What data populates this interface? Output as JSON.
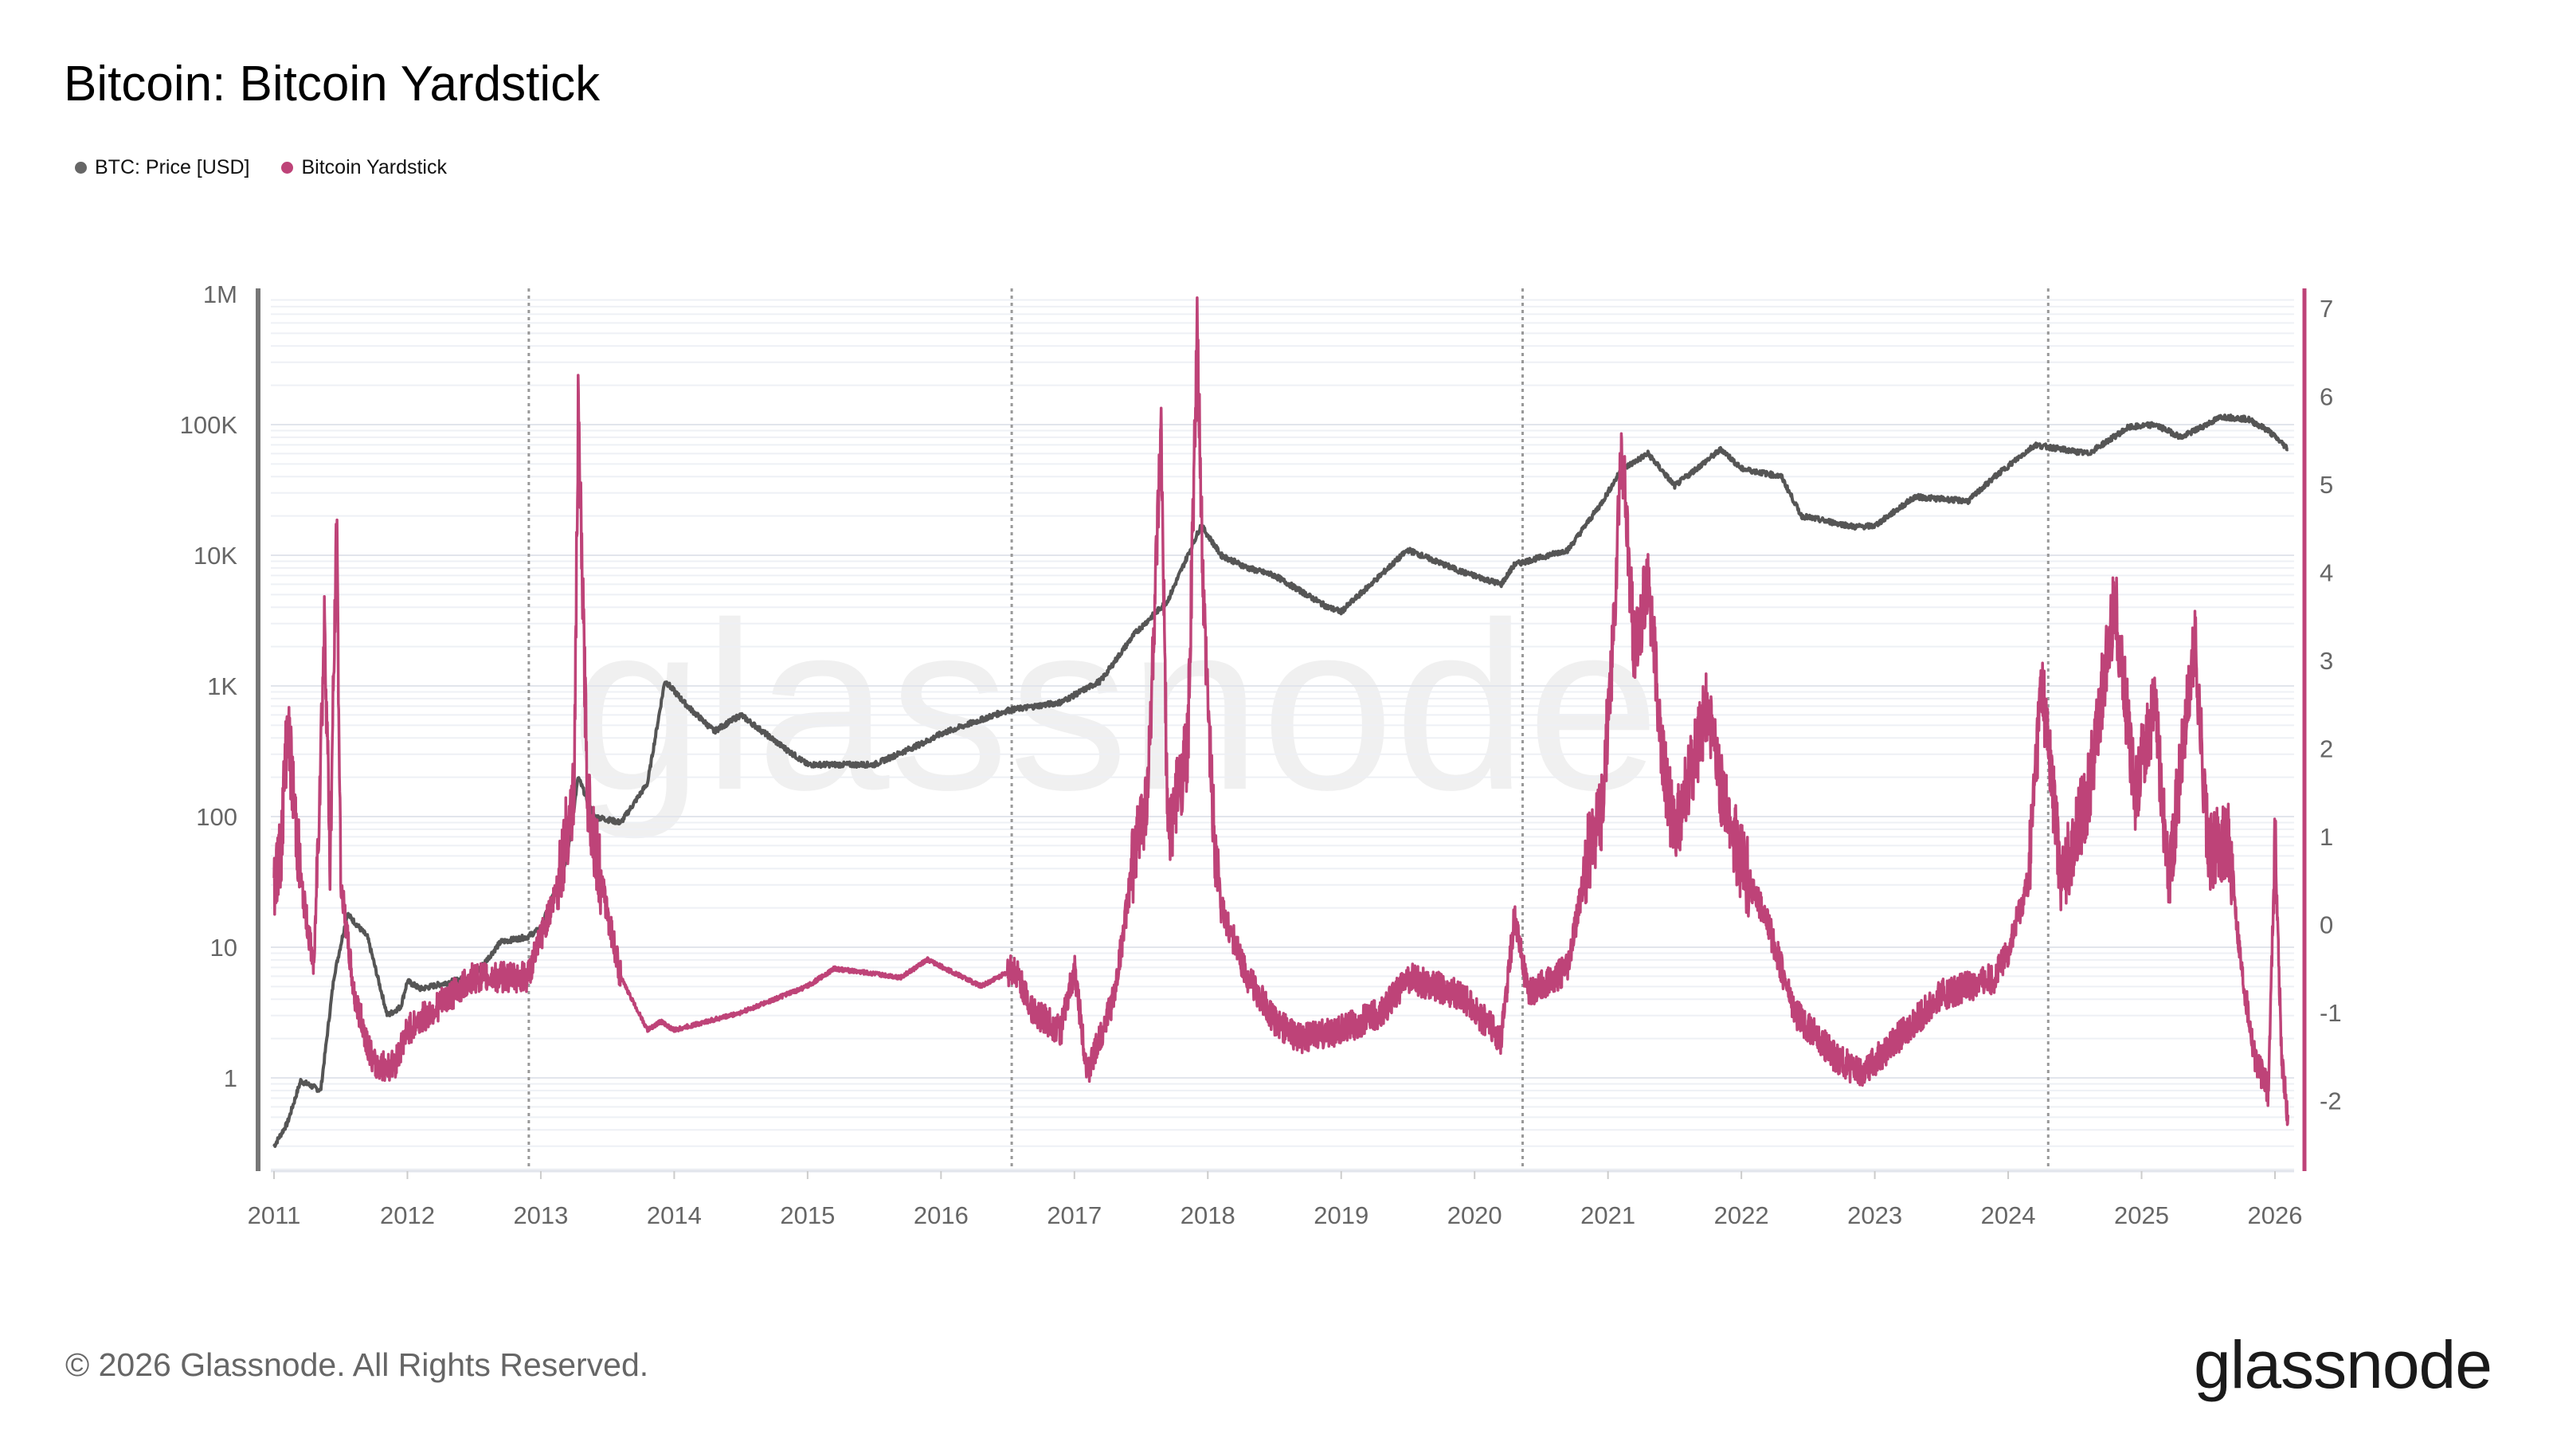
{
  "title": "Bitcoin: Bitcoin Yardstick",
  "legend": [
    {
      "label": "BTC: Price [USD]",
      "color": "#666666"
    },
    {
      "label": "Bitcoin Yardstick",
      "color": "#be4378"
    }
  ],
  "footer": "© 2026 Glassnode. All Rights Reserved.",
  "logo": "glassnode",
  "watermark": "glassnode",
  "chart_data": {
    "type": "line",
    "title": "Bitcoin: Bitcoin Yardstick",
    "x_ticks": [
      "2011",
      "2012",
      "2013",
      "2014",
      "2015",
      "2016",
      "2017",
      "2018",
      "2019",
      "2020",
      "2021",
      "2022",
      "2023",
      "2024",
      "2025",
      "2026"
    ],
    "xlim": [
      2011,
      2026.15
    ],
    "y_left": {
      "scale": "log",
      "range": [
        0.2,
        1000000
      ],
      "ticks": [
        {
          "v": 1,
          "label": "1"
        },
        {
          "v": 10,
          "label": "10"
        },
        {
          "v": 100,
          "label": "100"
        },
        {
          "v": 1000,
          "label": "1K"
        },
        {
          "v": 10000,
          "label": "10K"
        },
        {
          "v": 100000,
          "label": "100K"
        },
        {
          "v": 1000000,
          "label": "1M"
        }
      ]
    },
    "y_right": {
      "scale": "linear",
      "range": [
        -2.85,
        7.2
      ],
      "ticks": [
        -2,
        -1,
        0,
        1,
        2,
        3,
        4,
        5,
        6,
        7
      ]
    },
    "halving_lines": [
      2012.91,
      2016.53,
      2020.36,
      2024.3
    ],
    "grid": true,
    "legend_position": "top-left",
    "series": [
      {
        "name": "BTC: Price [USD]",
        "axis": "left",
        "color": "#555555",
        "points": [
          [
            2011.0,
            0.3
          ],
          [
            2011.1,
            0.45
          ],
          [
            2011.2,
            0.95
          ],
          [
            2011.35,
            0.8
          ],
          [
            2011.45,
            6
          ],
          [
            2011.55,
            18
          ],
          [
            2011.7,
            12
          ],
          [
            2011.85,
            3
          ],
          [
            2011.95,
            3.5
          ],
          [
            2012.0,
            5.5
          ],
          [
            2012.1,
            4.8
          ],
          [
            2012.5,
            6
          ],
          [
            2012.7,
            11
          ],
          [
            2012.9,
            12
          ],
          [
            2013.0,
            14
          ],
          [
            2013.2,
            50
          ],
          [
            2013.28,
            200
          ],
          [
            2013.4,
            100
          ],
          [
            2013.6,
            90
          ],
          [
            2013.8,
            180
          ],
          [
            2013.93,
            1100
          ],
          [
            2014.1,
            700
          ],
          [
            2014.3,
            450
          ],
          [
            2014.5,
            600
          ],
          [
            2014.8,
            350
          ],
          [
            2015.0,
            250
          ],
          [
            2015.5,
            250
          ],
          [
            2015.9,
            380
          ],
          [
            2016.0,
            430
          ],
          [
            2016.5,
            650
          ],
          [
            2016.9,
            750
          ],
          [
            2017.2,
            1100
          ],
          [
            2017.45,
            2500
          ],
          [
            2017.7,
            4500
          ],
          [
            2017.95,
            17000
          ],
          [
            2018.1,
            10000
          ],
          [
            2018.3,
            8000
          ],
          [
            2018.5,
            7000
          ],
          [
            2018.9,
            4000
          ],
          [
            2019.0,
            3700
          ],
          [
            2019.5,
            11000
          ],
          [
            2019.9,
            7500
          ],
          [
            2020.2,
            6000
          ],
          [
            2020.3,
            8500
          ],
          [
            2020.7,
            11000
          ],
          [
            2020.95,
            25000
          ],
          [
            2021.1,
            45000
          ],
          [
            2021.3,
            60000
          ],
          [
            2021.5,
            34000
          ],
          [
            2021.85,
            65000
          ],
          [
            2022.0,
            46000
          ],
          [
            2022.3,
            40000
          ],
          [
            2022.45,
            20000
          ],
          [
            2022.85,
            16500
          ],
          [
            2023.0,
            16800
          ],
          [
            2023.3,
            28000
          ],
          [
            2023.7,
            26000
          ],
          [
            2023.9,
            40000
          ],
          [
            2024.2,
            70000
          ],
          [
            2024.6,
            60000
          ],
          [
            2024.9,
            95000
          ],
          [
            2025.1,
            100000
          ],
          [
            2025.3,
            80000
          ],
          [
            2025.6,
            115000
          ],
          [
            2025.8,
            110000
          ],
          [
            2025.95,
            90000
          ],
          [
            2026.1,
            65000
          ]
        ]
      },
      {
        "name": "Bitcoin Yardstick",
        "axis": "right",
        "color": "#be4378",
        "points": [
          [
            2011.0,
            0.5
          ],
          [
            2011.05,
            0.8
          ],
          [
            2011.1,
            2.3
          ],
          [
            2011.2,
            0.5
          ],
          [
            2011.3,
            -0.5
          ],
          [
            2011.38,
            3.5
          ],
          [
            2011.42,
            0.7
          ],
          [
            2011.47,
            4.5
          ],
          [
            2011.5,
            0.5
          ],
          [
            2011.6,
            -0.8
          ],
          [
            2011.75,
            -1.6
          ],
          [
            2011.9,
            -1.6
          ],
          [
            2012.0,
            -1.2
          ],
          [
            2012.5,
            -0.6
          ],
          [
            2012.9,
            -0.6
          ],
          [
            2013.1,
            0.3
          ],
          [
            2013.25,
            1.5
          ],
          [
            2013.28,
            5.8
          ],
          [
            2013.35,
            1.5
          ],
          [
            2013.45,
            0.5
          ],
          [
            2013.6,
            -0.6
          ],
          [
            2013.8,
            -1.2
          ],
          [
            2013.9,
            -1.1
          ],
          [
            2014.0,
            -1.2
          ],
          [
            2014.5,
            -1.0
          ],
          [
            2015.0,
            -0.7
          ],
          [
            2015.2,
            -0.5
          ],
          [
            2015.7,
            -0.6
          ],
          [
            2015.9,
            -0.4
          ],
          [
            2016.3,
            -0.7
          ],
          [
            2016.55,
            -0.5
          ],
          [
            2016.7,
            -1.0
          ],
          [
            2016.9,
            -1.2
          ],
          [
            2017.0,
            -0.5
          ],
          [
            2017.1,
            -1.7
          ],
          [
            2017.3,
            -0.8
          ],
          [
            2017.45,
            0.8
          ],
          [
            2017.55,
            1.5
          ],
          [
            2017.65,
            5.5
          ],
          [
            2017.7,
            1.0
          ],
          [
            2017.85,
            2.0
          ],
          [
            2017.92,
            6.7
          ],
          [
            2017.97,
            3.5
          ],
          [
            2018.0,
            2.5
          ],
          [
            2018.05,
            1.0
          ],
          [
            2018.1,
            0.2
          ],
          [
            2018.3,
            -0.6
          ],
          [
            2018.5,
            -1.1
          ],
          [
            2018.7,
            -1.3
          ],
          [
            2019.0,
            -1.2
          ],
          [
            2019.3,
            -1.0
          ],
          [
            2019.5,
            -0.6
          ],
          [
            2019.9,
            -0.8
          ],
          [
            2020.2,
            -1.3
          ],
          [
            2020.3,
            0.1
          ],
          [
            2020.4,
            -0.8
          ],
          [
            2020.7,
            -0.5
          ],
          [
            2020.85,
            0.8
          ],
          [
            2020.95,
            1.2
          ],
          [
            2021.05,
            3.5
          ],
          [
            2021.1,
            5.5
          ],
          [
            2021.2,
            3.0
          ],
          [
            2021.3,
            4.0
          ],
          [
            2021.4,
            2.0
          ],
          [
            2021.5,
            1.0
          ],
          [
            2021.75,
            2.5
          ],
          [
            2021.85,
            1.5
          ],
          [
            2022.0,
            0.7
          ],
          [
            2022.2,
            0.0
          ],
          [
            2022.4,
            -1.0
          ],
          [
            2022.7,
            -1.5
          ],
          [
            2022.9,
            -1.7
          ],
          [
            2023.1,
            -1.4
          ],
          [
            2023.5,
            -0.8
          ],
          [
            2023.9,
            -0.6
          ],
          [
            2024.0,
            -0.3
          ],
          [
            2024.15,
            0.5
          ],
          [
            2024.25,
            2.8
          ],
          [
            2024.4,
            0.5
          ],
          [
            2024.6,
            1.5
          ],
          [
            2024.8,
            3.7
          ],
          [
            2024.95,
            1.5
          ],
          [
            2025.1,
            2.5
          ],
          [
            2025.2,
            0.5
          ],
          [
            2025.4,
            3.2
          ],
          [
            2025.5,
            0.8
          ],
          [
            2025.65,
            1.0
          ],
          [
            2025.75,
            -0.5
          ],
          [
            2025.85,
            -1.5
          ],
          [
            2025.95,
            -1.9
          ],
          [
            2026.0,
            1.0
          ],
          [
            2026.05,
            -1.5
          ],
          [
            2026.1,
            -2.3
          ]
        ]
      }
    ]
  }
}
